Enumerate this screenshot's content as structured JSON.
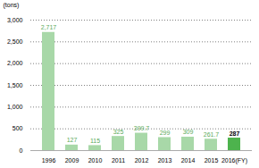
{
  "chart_data": {
    "type": "bar",
    "ylabel": "(tons)",
    "categories": [
      "1996",
      "2009",
      "2010",
      "2011",
      "2012",
      "2013",
      "2014",
      "2015",
      "2016(FY)"
    ],
    "values": [
      2717,
      127,
      115,
      325,
      399.7,
      299,
      309,
      261.7,
      287
    ],
    "value_labels": [
      "2,717",
      "127",
      "115",
      "325",
      "399.7",
      "299",
      "309",
      "261.7",
      "287"
    ],
    "colors": [
      "#a8d8a8",
      "#a8d8a8",
      "#a8d8a8",
      "#a8d8a8",
      "#a8d8a8",
      "#a8d8a8",
      "#a8d8a8",
      "#a8d8a8",
      "#4db34d"
    ],
    "ylim": [
      0,
      3000
    ],
    "yticks": [
      0,
      500,
      1000,
      1500,
      2000,
      2500,
      3000
    ],
    "grid": true,
    "data_labels": true
  }
}
